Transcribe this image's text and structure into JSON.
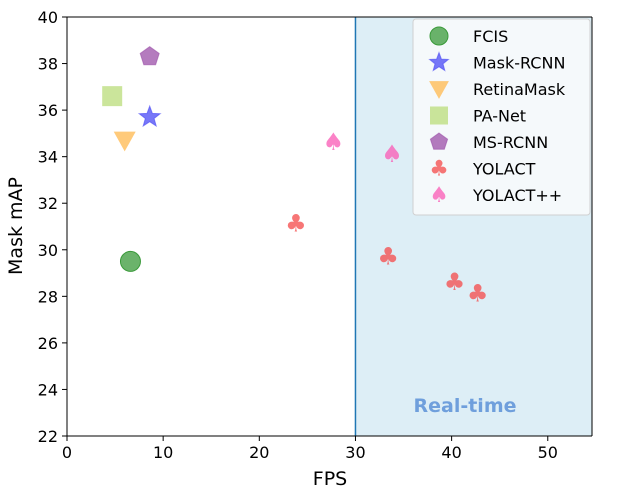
{
  "chart_data": {
    "type": "scatter",
    "xlabel": "FPS",
    "ylabel": "Mask mAP",
    "xlim": [
      0,
      54.6
    ],
    "ylim": [
      22,
      40
    ],
    "xticks": [
      0,
      10,
      20,
      30,
      40,
      50
    ],
    "yticks": [
      22,
      24,
      26,
      28,
      30,
      32,
      34,
      36,
      38,
      40
    ],
    "grid": false,
    "legend_position": "top-right",
    "annotation": {
      "text": "Real-time",
      "x_from": 30,
      "color": "#6f9fdc",
      "shade_color": "#ddeef6",
      "line_color": "#1f77b4"
    },
    "series": [
      {
        "name": "FCIS",
        "marker": "circle",
        "color": "#3a9a3a",
        "points": [
          [
            6.6,
            29.5
          ]
        ]
      },
      {
        "name": "Mask-RCNN",
        "marker": "star",
        "color": "#4a4af5",
        "points": [
          [
            8.6,
            35.7
          ]
        ]
      },
      {
        "name": "RetinaMask",
        "marker": "triangle-down",
        "color": "#ffb84d",
        "points": [
          [
            6.0,
            34.7
          ]
        ]
      },
      {
        "name": "PA-Net",
        "marker": "square",
        "color": "#b9dc7a",
        "points": [
          [
            4.7,
            36.6
          ]
        ]
      },
      {
        "name": "MS-RCNN",
        "marker": "pentagon",
        "color": "#9b4fa8",
        "points": [
          [
            8.6,
            38.3
          ]
        ]
      },
      {
        "name": "YOLACT",
        "marker": "club",
        "color": "#f44848",
        "points": [
          [
            23.8,
            31.1
          ],
          [
            33.4,
            29.7
          ],
          [
            40.3,
            28.6
          ],
          [
            42.7,
            28.1
          ]
        ]
      },
      {
        "name": "YOLACT++",
        "marker": "spade",
        "color": "#fa58b4",
        "points": [
          [
            27.7,
            34.6
          ],
          [
            33.8,
            34.1
          ]
        ]
      }
    ]
  }
}
